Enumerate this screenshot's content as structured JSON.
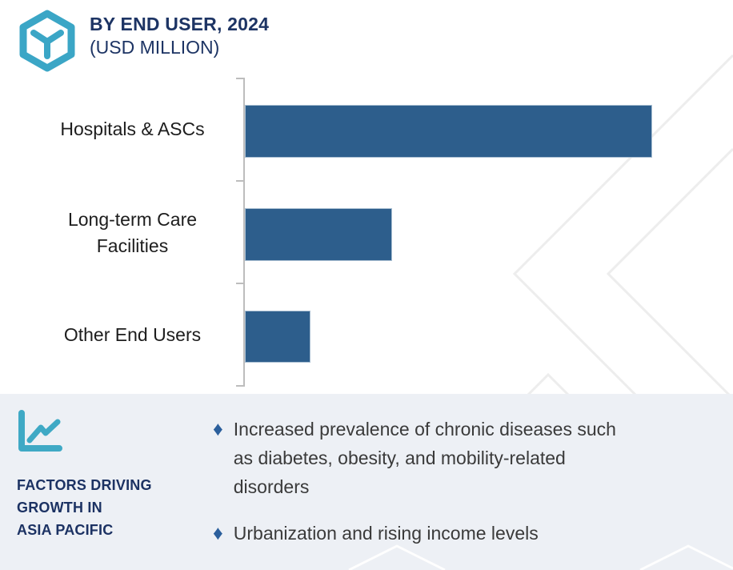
{
  "header": {
    "title": "BY END USER, 2024",
    "subtitle": "(USD MILLION)",
    "logo_icon": "hexagon-y-cube-icon",
    "navy_color": "#1d3464",
    "teal_color": "#3ba6c6"
  },
  "chart_data": {
    "type": "bar",
    "orientation": "horizontal",
    "title": "BY END USER, 2024 (USD MILLION)",
    "categories": [
      "Hospitals & ASCs",
      "Long-term Care\nFacilities",
      "Other End Users"
    ],
    "values_pct_of_max": [
      100,
      36.2,
      16.1
    ],
    "values_note": "no numeric axis or data labels shown; values estimated as percent of longest bar",
    "bar_color": "#2d5e8c",
    "axis_color": "#bdbdbd",
    "grid": false,
    "value_labels": false,
    "legend": false
  },
  "factors_panel": {
    "icon": "line-chart-icon",
    "heading_lines": [
      "FACTORS DRIVING",
      "GROWTH IN",
      "ASIA PACIFIC"
    ],
    "bullet_char": "♦",
    "bullets": [
      [
        "Increased prevalence of chronic diseases such",
        "as diabetes, obesity, and mobility-related",
        "disorders"
      ],
      [
        "Urbanization and rising income levels"
      ]
    ],
    "panel_bg": "#edf0f5",
    "bullet_color": "#2b5f9c",
    "text_color": "#3a3a3a"
  }
}
